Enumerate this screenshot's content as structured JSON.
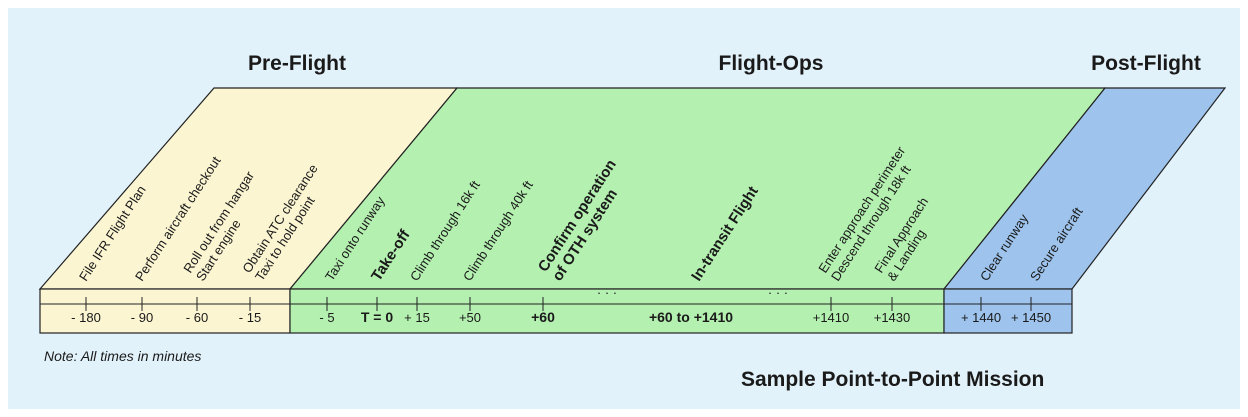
{
  "colors": {
    "background": "#e2f2fa",
    "preflight": "#fbf5d2",
    "flightops": "#b4f0b0",
    "postflight": "#9ec4ee",
    "border": "#222222"
  },
  "phases": {
    "preflight": "Pre-Flight",
    "flightops": "Flight-Ops",
    "postflight": "Post-Flight"
  },
  "events": {
    "preflight": [
      {
        "lines": [
          "File IFR Flight Plan"
        ],
        "bold": false
      },
      {
        "lines": [
          "Perform aircraft checkout"
        ],
        "bold": false
      },
      {
        "lines": [
          "Roll out from hangar",
          "Start engine"
        ],
        "bold": false
      },
      {
        "lines": [
          "Obtain ATC clearance",
          "Taxi to hold point"
        ],
        "bold": false
      }
    ],
    "flightops": [
      {
        "lines": [
          "Taxi onto runway"
        ],
        "bold": false
      },
      {
        "lines": [
          "Take-off"
        ],
        "bold": true
      },
      {
        "lines": [
          "Climb through 16k ft"
        ],
        "bold": false
      },
      {
        "lines": [
          "Climb through 40k ft"
        ],
        "bold": false
      },
      {
        "lines": [
          "Confirm operation",
          "of OTH system"
        ],
        "bold": true
      },
      {
        "lines": [
          "In-transit Flight"
        ],
        "bold": true
      },
      {
        "lines": [
          "Enter approach perimeter",
          "Descend through 18k ft"
        ],
        "bold": false
      },
      {
        "lines": [
          "Final Approach",
          "& Landing"
        ],
        "bold": false
      }
    ],
    "postflight": [
      {
        "lines": [
          "Clear runway"
        ],
        "bold": false
      },
      {
        "lines": [
          "Secure aircraft"
        ],
        "bold": false
      }
    ]
  },
  "timeline": {
    "preflight": [
      "- 180",
      "- 90",
      "- 60",
      "- 15"
    ],
    "flightops": [
      {
        "label": "- 5",
        "bold": false
      },
      {
        "label": "T = 0",
        "bold": true
      },
      {
        "label": "+ 15",
        "bold": false
      },
      {
        "label": "+50",
        "bold": false
      },
      {
        "label": "+60",
        "bold": true
      },
      {
        "label": "+60 to +1410",
        "bold": true
      },
      {
        "label": "+1410",
        "bold": false
      },
      {
        "label": "+1430",
        "bold": false
      }
    ],
    "postflight": [
      "+ 1440",
      "+ 1450"
    ],
    "ellipsis": "· · ·"
  },
  "note": "Note: All times in minutes",
  "caption": "Sample Point-to-Point Mission"
}
